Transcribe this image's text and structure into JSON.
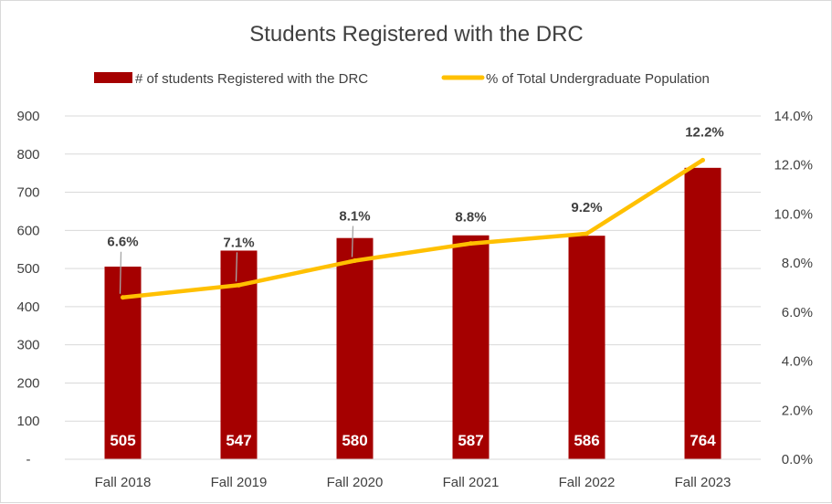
{
  "chart_data": {
    "type": "bar",
    "title": "Students Registered with the DRC",
    "categories": [
      "Fall 2018",
      "Fall 2019",
      "Fall 2020",
      "Fall 2021",
      "Fall 2022",
      "Fall 2023"
    ],
    "series": [
      {
        "name": "# of students Registered with the DRC",
        "type": "bar",
        "axis": "left",
        "color": "#a50000",
        "values": [
          505,
          547,
          580,
          587,
          586,
          764
        ],
        "labels": [
          "505",
          "547",
          "580",
          "587",
          "586",
          "764"
        ]
      },
      {
        "name": "% of Total Undergraduate Population",
        "type": "line",
        "axis": "right",
        "color": "#ffc000",
        "values": [
          6.6,
          7.1,
          8.1,
          8.8,
          9.2,
          12.2
        ],
        "labels": [
          "6.6%",
          "7.1%",
          "8.1%",
          "8.8%",
          "9.2%",
          "12.2%"
        ]
      }
    ],
    "y_left": {
      "ylim": [
        0,
        900
      ],
      "ticks": [
        0,
        100,
        200,
        300,
        400,
        500,
        600,
        700,
        800,
        900
      ],
      "tick_labels": [
        "-",
        "100",
        "200",
        "300",
        "400",
        "500",
        "600",
        "700",
        "800",
        "900"
      ]
    },
    "y_right": {
      "ylim": [
        0,
        14
      ],
      "ticks": [
        0,
        2,
        4,
        6,
        8,
        10,
        12,
        14
      ],
      "tick_labels": [
        "0.0%",
        "2.0%",
        "4.0%",
        "6.0%",
        "8.0%",
        "10.0%",
        "12.0%",
        "14.0%"
      ]
    },
    "grid": true,
    "legend_position": "top"
  }
}
